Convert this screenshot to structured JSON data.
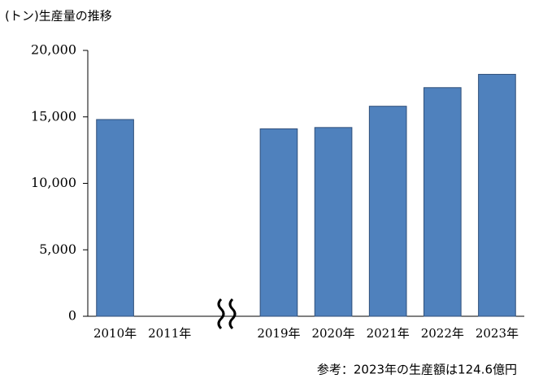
{
  "chart_data": {
    "type": "bar",
    "title": "(トン)生産量の推移",
    "categories": [
      "2010年",
      "2011年",
      null,
      "2019年",
      "2020年",
      "2021年",
      "2022年",
      "2023年"
    ],
    "values": [
      14800,
      null,
      null,
      14100,
      14200,
      15800,
      17200,
      18200
    ],
    "color": "#4f81bd",
    "ylim": [
      0,
      20000
    ],
    "yticks": [
      0,
      {
        "value": 5000,
        "label": "5,000"
      },
      {
        "value": 10000,
        "label": "10,000"
      },
      {
        "value": 15000,
        "label": "15,000"
      },
      {
        "value": 20000,
        "label": "20,000"
      }
    ],
    "grid": false,
    "note": "参考：2023年の生産額は124.6億円"
  }
}
